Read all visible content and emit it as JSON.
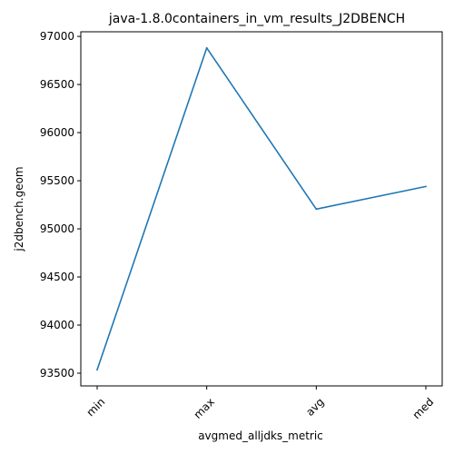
{
  "chart_data": {
    "type": "line",
    "title": "java-1.8.0containers_in_vm_results_J2DBENCH",
    "xlabel": "avgmed_alljdks_metric",
    "ylabel": "j2dbench.geom",
    "categories": [
      "min",
      "max",
      "avg",
      "med"
    ],
    "series": [
      {
        "values": [
          93535,
          96880,
          95205,
          95440
        ],
        "color": "#1f77b4"
      }
    ],
    "yticks": [
      93500,
      94000,
      94500,
      95000,
      95500,
      96000,
      96500,
      97000
    ],
    "ylim": [
      93368,
      97048
    ],
    "grid": false,
    "legend": "none"
  }
}
